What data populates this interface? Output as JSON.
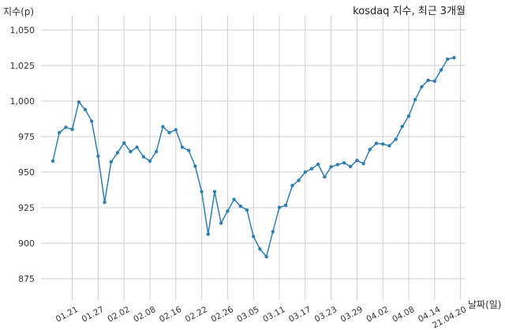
{
  "chart_data": {
    "type": "line",
    "title": "kosdaq 지수, 최근 3개월",
    "ylabel": "지수(p)",
    "xlabel": "날짜(일)",
    "ylim": [
      860,
      1060
    ],
    "y_ticks": [
      875,
      900,
      925,
      950,
      975,
      1000,
      1025,
      1050
    ],
    "y_tick_labels": [
      "875",
      "900",
      "925",
      "950",
      "975",
      "1,000",
      "1,025",
      "1,050"
    ],
    "x_tick_labels": [
      "01.21",
      "01.27",
      "02.02",
      "02.08",
      "02.16",
      "02.22",
      "02.26",
      "03.05",
      "03.11",
      "03.17",
      "03.23",
      "03.29",
      "04.02",
      "04.08",
      "04.14",
      "21.04.20"
    ],
    "x_tick_index": [
      3,
      7,
      11,
      15,
      19,
      23,
      27,
      31,
      35,
      39,
      43,
      47,
      51,
      55,
      59,
      63
    ],
    "grid": true,
    "line_color": "#2e7fb0",
    "series": [
      {
        "values": [
          957.8,
          977.8,
          981.5,
          980.1,
          999.3,
          994.0,
          985.9,
          961.2,
          928.7,
          957.2,
          963.7,
          970.5,
          964.4,
          967.5,
          960.8,
          957.8,
          964.5,
          982.0,
          977.8,
          979.8,
          967.5,
          965.2,
          954.2,
          936.2,
          906.3,
          936.2,
          914.1,
          922.5,
          930.8,
          926.0,
          923.3,
          904.8,
          895.9,
          890.5,
          908.1,
          925.1,
          926.6,
          940.5,
          944.2,
          950.0,
          952.4,
          955.5,
          946.6,
          953.7,
          955.2,
          956.5,
          953.9,
          958.2,
          956.0,
          965.9,
          970.2,
          969.8,
          968.5,
          973.1,
          982.1,
          989.4,
          1001.0,
          1010.0,
          1014.6,
          1014.0,
          1021.9,
          1029.5,
          1030.5
        ]
      }
    ]
  }
}
